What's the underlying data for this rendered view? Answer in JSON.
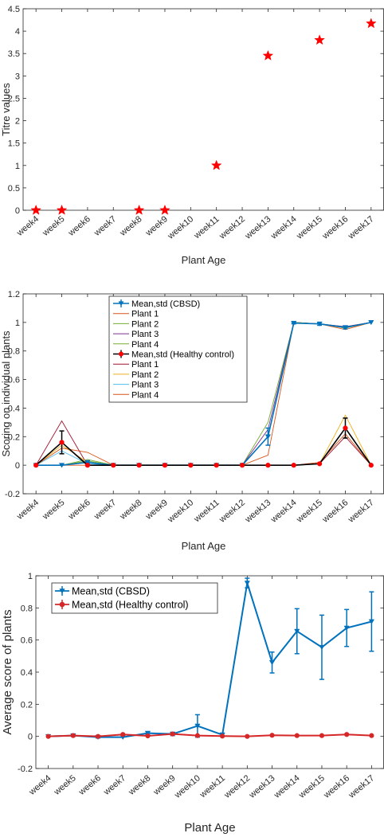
{
  "chart_data": [
    {
      "type": "scatter",
      "xlabel": "Plant Age",
      "ylabel": "Titre values",
      "categories": [
        "week4",
        "week5",
        "week6",
        "week7",
        "week8",
        "week9",
        "week10",
        "week11",
        "week12",
        "week13",
        "week14",
        "week15",
        "week16",
        "week17"
      ],
      "ylim": [
        0,
        4.5
      ],
      "yticks": [
        0,
        0.5,
        1,
        1.5,
        2,
        2.5,
        3,
        3.5,
        4,
        4.5
      ],
      "marker": "star",
      "color": "#ff0000",
      "points": [
        {
          "x": "week4",
          "y": 0
        },
        {
          "x": "week5",
          "y": 0
        },
        {
          "x": "week8",
          "y": 0
        },
        {
          "x": "week9",
          "y": 0
        },
        {
          "x": "week11",
          "y": 1
        },
        {
          "x": "week13",
          "y": 3.45
        },
        {
          "x": "week15",
          "y": 3.8
        },
        {
          "x": "week17",
          "y": 4.17
        }
      ]
    },
    {
      "type": "line",
      "xlabel": "Plant Age",
      "ylabel": "Scoring on individual plants",
      "categories": [
        "week4",
        "week5",
        "week6",
        "week7",
        "week8",
        "week9",
        "week10",
        "week11",
        "week12",
        "week13",
        "week14",
        "week15",
        "week16",
        "week17"
      ],
      "ylim": [
        -0.2,
        1.2
      ],
      "yticks": [
        -0.2,
        0,
        0.2,
        0.4,
        0.6,
        0.8,
        1,
        1.2
      ],
      "legend_position": "top-left",
      "series": [
        {
          "name": "Mean,std (CBSD)",
          "color": "#0072bd",
          "marker": "triangle-down",
          "errorbar": true,
          "values": [
            0,
            0,
            0.02,
            0,
            0,
            0,
            0,
            0,
            0,
            0.2,
            0.995,
            0.99,
            0.965,
            1.0
          ],
          "err": [
            0,
            0,
            0.01,
            0,
            0,
            0,
            0,
            0,
            0,
            0.06,
            0.005,
            0.01,
            0.01,
            0
          ]
        },
        {
          "name": "Plant 1",
          "color": "#d95319",
          "values": [
            0,
            0,
            0,
            0,
            0,
            0,
            0,
            0,
            0,
            0.07,
            1,
            0.99,
            0.95,
            1
          ]
        },
        {
          "name": "Plant 2",
          "color": "#77ac30",
          "values": [
            0,
            0,
            0.04,
            0,
            0,
            0,
            0,
            0,
            0,
            0.3,
            1,
            0.99,
            0.97,
            1
          ]
        },
        {
          "name": "Plant 3",
          "color": "#7e2f8e",
          "values": [
            0,
            0,
            0.02,
            0,
            0,
            0,
            0,
            0,
            0,
            0.25,
            1,
            0.99,
            0.97,
            1
          ]
        },
        {
          "name": "Plant 4",
          "color": "#77ac30",
          "values": [
            0,
            0,
            0.03,
            0,
            0,
            0,
            0,
            0,
            0,
            0.2,
            1,
            0.99,
            0.96,
            1
          ]
        },
        {
          "name": "Mean,std (Healthy control)",
          "color": "#000000",
          "marker": "circle",
          "markerColor": "#ff0000",
          "errorbar": true,
          "values": [
            0,
            0.16,
            0,
            0,
            0,
            0,
            0,
            0,
            0,
            0,
            0,
            0.01,
            0.26,
            0
          ],
          "err": [
            0,
            0.08,
            0,
            0,
            0,
            0,
            0,
            0,
            0,
            0,
            0,
            0,
            0.07,
            0
          ]
        },
        {
          "name": "Plant 1",
          "color": "#a2142f",
          "values": [
            0,
            0.31,
            0,
            0,
            0,
            0,
            0,
            0,
            0,
            0,
            0,
            0.01,
            0.2,
            0
          ]
        },
        {
          "name": "Plant 2",
          "color": "#edb120",
          "values": [
            0,
            0.14,
            0.02,
            0,
            0,
            0,
            0,
            0,
            0,
            0,
            0,
            0.01,
            0.35,
            0
          ]
        },
        {
          "name": "Plant 3",
          "color": "#4dbeee",
          "values": [
            0,
            0.1,
            0.01,
            0,
            0,
            0,
            0,
            0,
            0,
            0,
            0,
            0.01,
            0.26,
            0
          ]
        },
        {
          "name": "Plant 4",
          "color": "#d95319",
          "values": [
            0,
            0.12,
            0.09,
            0,
            0,
            0,
            0,
            0,
            0,
            0,
            0,
            0.02,
            0.22,
            0
          ]
        }
      ]
    },
    {
      "type": "line",
      "xlabel": "Plant Age",
      "ylabel": "Average score of plants",
      "categories": [
        "week4",
        "week5",
        "week6",
        "week7",
        "week8",
        "week9",
        "week10",
        "week11",
        "week12",
        "week13",
        "week14",
        "week15",
        "week16",
        "week17"
      ],
      "ylim": [
        -0.2,
        1.0
      ],
      "yticks": [
        -0.2,
        0,
        0.2,
        0.4,
        0.6,
        0.8,
        1
      ],
      "legend_position": "top-left",
      "series": [
        {
          "name": "Mean,std (CBSD)",
          "color": "#0072bd",
          "marker": "triangle-down",
          "errorbar": true,
          "values": [
            0,
            0.005,
            -0.005,
            -0.005,
            0.02,
            0.015,
            0.065,
            0.01,
            0.955,
            0.46,
            0.655,
            0.555,
            0.675,
            0.715
          ],
          "err": [
            0,
            0.005,
            0.005,
            0,
            0.01,
            0.01,
            0.07,
            0.01,
            0.03,
            0.065,
            0.14,
            0.2,
            0.115,
            0.185
          ]
        },
        {
          "name": "Mean,std (Healthy control)",
          "color": "#d62728",
          "marker": "circle",
          "errorbar": true,
          "values": [
            0,
            0.005,
            0,
            0.012,
            0.003,
            0.015,
            0.005,
            0.002,
            0.0,
            0.007,
            0.005,
            0.005,
            0.012,
            0.005
          ],
          "err": [
            0,
            0,
            0,
            0,
            0,
            0,
            0,
            0,
            0,
            0,
            0,
            0,
            0,
            0
          ]
        }
      ]
    }
  ]
}
